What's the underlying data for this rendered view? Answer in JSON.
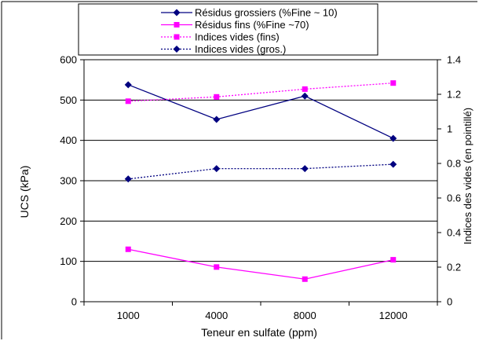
{
  "chart_data": {
    "type": "line",
    "categories": [
      "1000",
      "4000",
      "8000",
      "12000"
    ],
    "xlabel": "Teneur en sulfate (ppm)",
    "ylabel": "UCS (kPa)",
    "y2label": "Indices des vides (en pointillé)",
    "ylim": [
      0,
      600
    ],
    "y2lim": [
      0,
      1.4
    ],
    "yticks": [
      "0",
      "100",
      "200",
      "300",
      "400",
      "500",
      "600"
    ],
    "y2ticks": [
      "0",
      "0.2",
      "0.4",
      "0.6",
      "0.8",
      "1",
      "1.2",
      "1.4"
    ],
    "grid": "horizontal",
    "legend_position": "top",
    "series": [
      {
        "name": "Résidus grossiers (%Fine ~ 10)",
        "axis": "left",
        "values": [
          538,
          452,
          510,
          405
        ],
        "color": "#000080",
        "marker": "diamond",
        "dash": "solid"
      },
      {
        "name": "Résidus fins (%Fine ~70)",
        "axis": "left",
        "values": [
          130,
          86,
          56,
          104
        ],
        "color": "#ff00ff",
        "marker": "square",
        "dash": "solid"
      },
      {
        "name": "Indices vides (fins)",
        "axis": "right",
        "values": [
          1.16,
          1.185,
          1.23,
          1.265
        ],
        "color": "#ff00ff",
        "marker": "square",
        "dash": "dotted"
      },
      {
        "name": "Indices vides (gros.)",
        "axis": "right",
        "values": [
          0.71,
          0.77,
          0.77,
          0.795
        ],
        "color": "#000080",
        "marker": "diamond",
        "dash": "dotted"
      }
    ]
  }
}
